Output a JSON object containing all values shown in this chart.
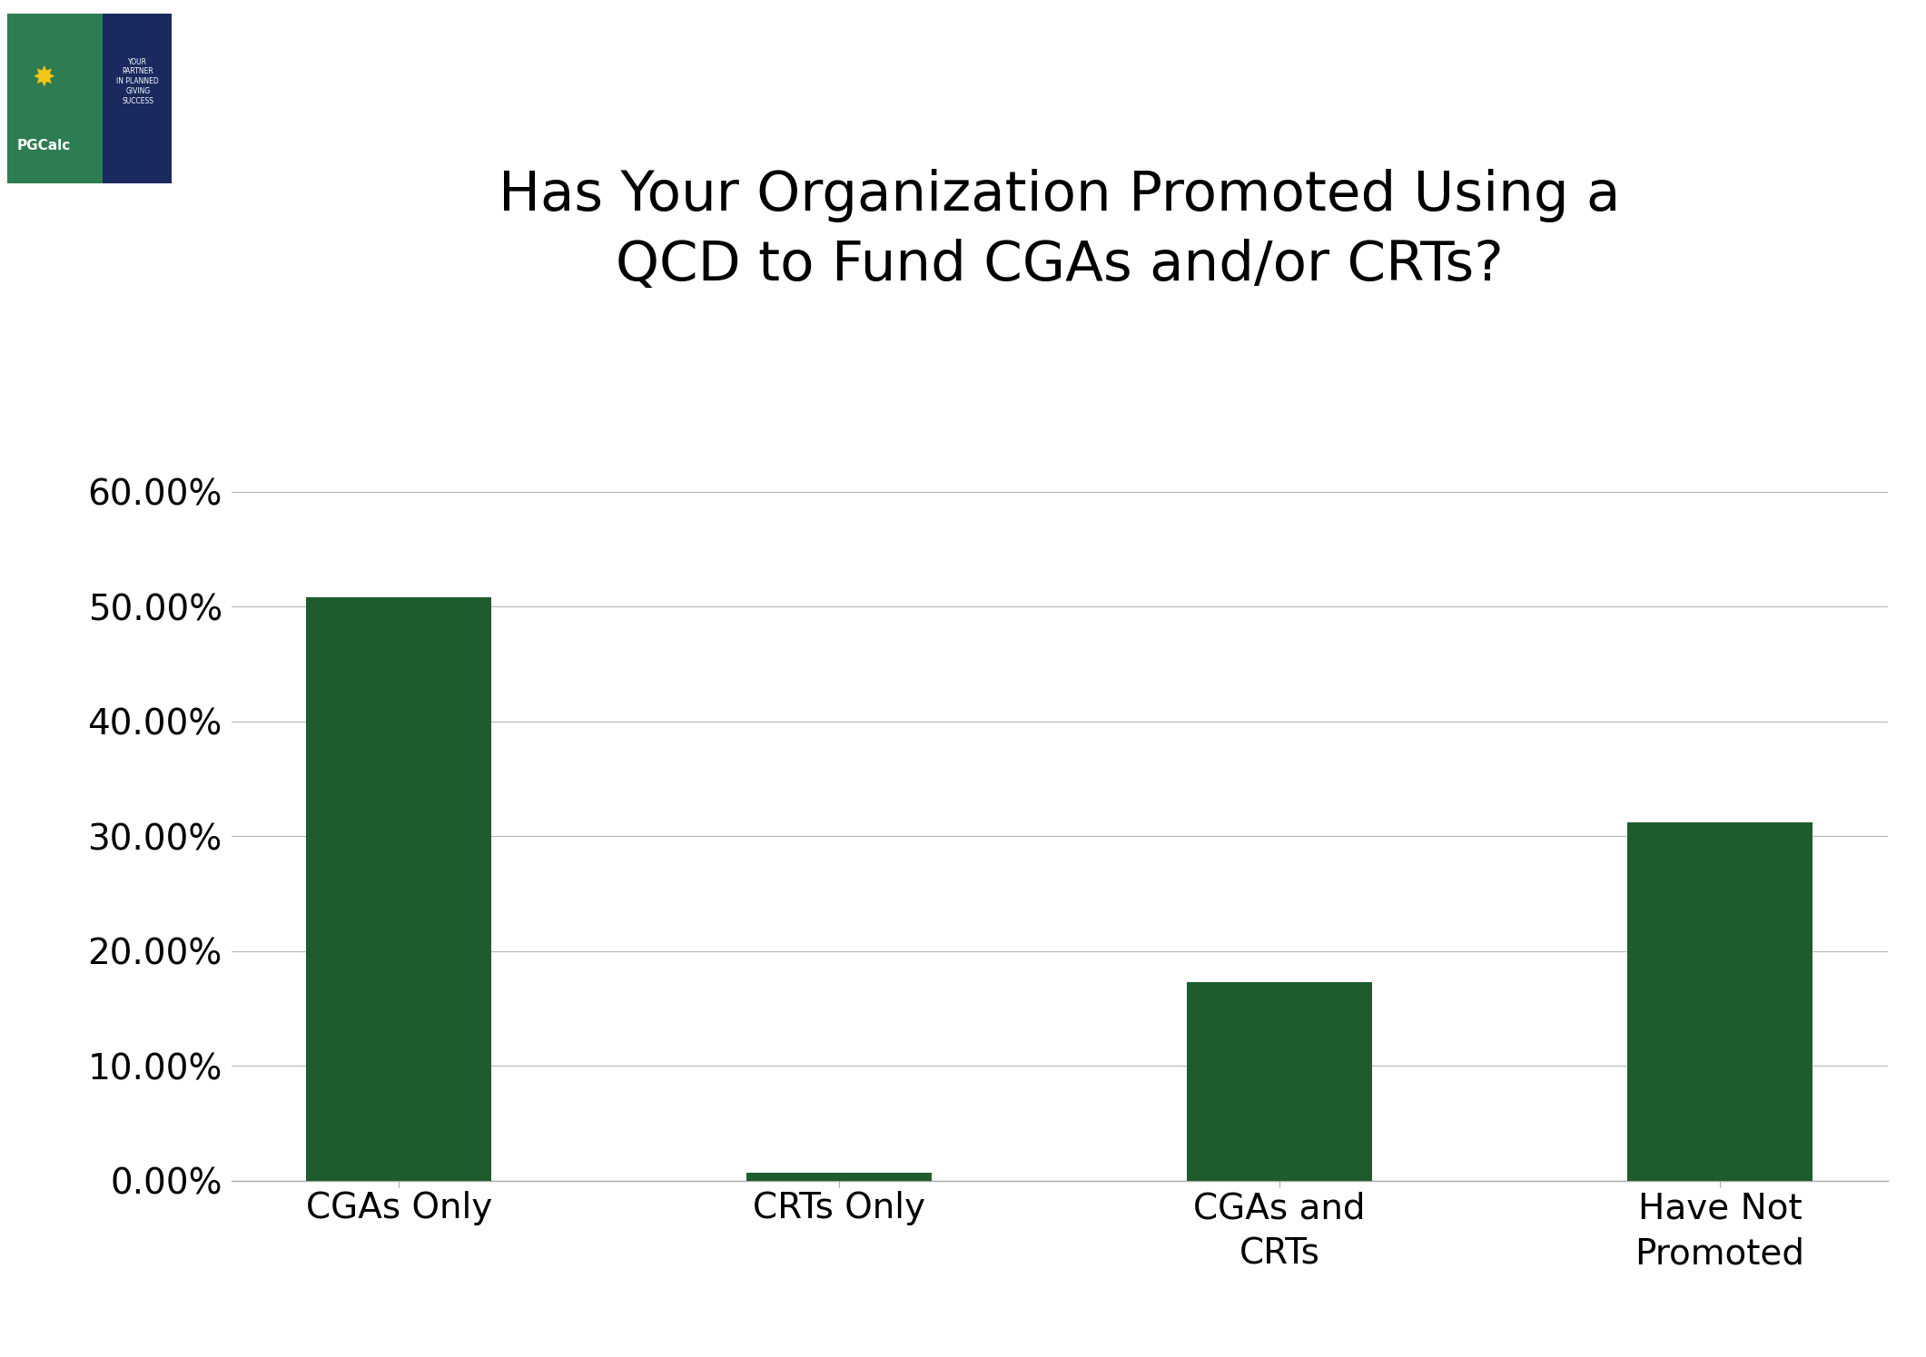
{
  "title": "Has Your Organization Promoted Using a\nQCD to Fund CGAs and/or CRTs?",
  "categories": [
    "CGAs Only",
    "CRTs Only",
    "CGAs and\nCRTs",
    "Have Not\nPromoted"
  ],
  "values": [
    0.508,
    0.007,
    0.173,
    0.312
  ],
  "bar_color": "#1e5c2e",
  "background_color": "#ffffff",
  "ylim": [
    0,
    0.65
  ],
  "yticks": [
    0.0,
    0.1,
    0.2,
    0.3,
    0.4,
    0.5,
    0.6
  ],
  "ytick_labels": [
    "0.00%",
    "10.00%",
    "20.00%",
    "30.00%",
    "40.00%",
    "50.00%",
    "60.00%"
  ],
  "title_fontsize": 44,
  "tick_fontsize": 28,
  "bar_width": 0.42,
  "grid_color": "#bbbbbb",
  "spine_color": "#aaaaaa",
  "logo_green": "#2e7d52",
  "logo_navy": "#1a2a5e",
  "logo_yellow": "#f5c518"
}
